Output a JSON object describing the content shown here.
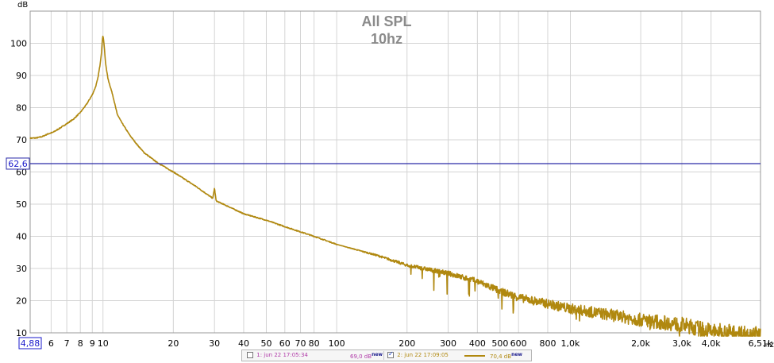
{
  "chart_data": {
    "type": "line",
    "title": "All SPL",
    "subtitle": "10hz",
    "ylabel": "dB",
    "xunit": "Hz",
    "xscale": "log",
    "xlim": [
      4.88,
      6510
    ],
    "ylim": [
      10,
      110
    ],
    "grid": true,
    "y_ticks": [
      10,
      20,
      30,
      40,
      50,
      60,
      70,
      80,
      90,
      100
    ],
    "y_tick_labels": [
      "10",
      "20",
      "30",
      "40",
      "50",
      "60",
      "70",
      "80",
      "90",
      "100"
    ],
    "x_ticks": [
      6,
      7,
      8,
      9,
      10,
      20,
      30,
      40,
      50,
      60,
      70,
      80,
      100,
      200,
      300,
      400,
      500,
      600,
      800,
      1000,
      2000,
      3000,
      4000,
      6510
    ],
    "x_tick_labels": [
      "6",
      "7",
      "8",
      "9",
      "10",
      "20",
      "30",
      "40",
      "50",
      "60",
      "70",
      "80",
      "100",
      "200",
      "300",
      "400",
      "500",
      "600",
      "800",
      "1,0k",
      "2,0k",
      "3,0k",
      "4,0k",
      "6,51k"
    ],
    "x_start_label": "4,88",
    "cursor": {
      "value": 62.6,
      "label": "62,6",
      "color": "#2a2aa8"
    },
    "series": [
      {
        "name": "2: jun 22 17:09:05",
        "color": "#b0880f",
        "x": [
          4.88,
          5.2,
          5.5,
          5.8,
          6.1,
          6.5,
          7.0,
          7.5,
          8.0,
          8.5,
          9.0,
          9.3,
          9.5,
          9.7,
          9.85,
          9.95,
          10.0,
          10.1,
          10.25,
          10.5,
          11.0,
          11.5,
          12.0,
          13.0,
          14.0,
          15.0,
          17.0,
          20.0,
          25.0,
          29.5,
          30.0,
          30.5,
          35.0,
          40.0,
          50.0,
          60.0,
          80.0,
          100.0,
          150.0,
          200.0,
          300.0,
          400.0,
          500.0,
          600.0,
          800.0,
          1000.0,
          1500.0,
          2000.0,
          3000.0,
          4000.0,
          5000.0,
          6510.0
        ],
        "values": [
          70.5,
          70.6,
          71.0,
          71.8,
          72.3,
          73.5,
          75.0,
          76.5,
          78.5,
          81.0,
          84.0,
          86.5,
          89.0,
          93.0,
          97.0,
          101.5,
          102.5,
          100.0,
          94.0,
          89.0,
          84.0,
          78.0,
          75.5,
          71.5,
          68.5,
          66.0,
          63.0,
          60.0,
          55.5,
          51.8,
          55.0,
          51.0,
          49.0,
          47.0,
          45.0,
          43.0,
          40.0,
          37.5,
          34.0,
          31.0,
          28.5,
          26.0,
          23.0,
          21.0,
          19.0,
          17.5,
          15.5,
          14.0,
          12.5,
          10.5,
          10.0,
          9.0
        ]
      }
    ]
  },
  "legend": {
    "items": [
      {
        "label": "1: jun 22 17:05:34",
        "value": "69,0 dB",
        "badge": "new",
        "checked": false,
        "color": "#b03aa8"
      },
      {
        "label": "2: jun 22 17:09:05",
        "value": "70,4 dB",
        "badge": "new",
        "checked": true,
        "color": "#b0880f"
      }
    ]
  }
}
